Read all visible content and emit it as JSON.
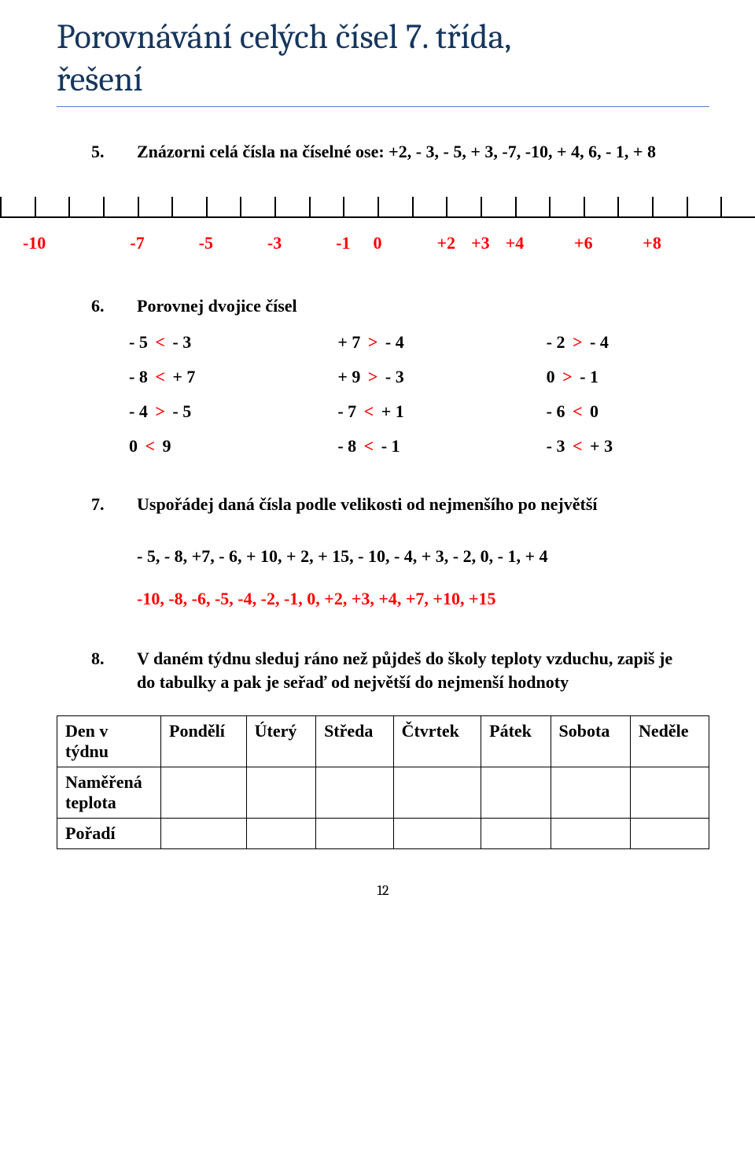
{
  "title_line1": "Porovnávání celých čísel 7. třída,",
  "title_line2": "řešení",
  "title_color": "#17365d",
  "rule_color": "#4f81bd",
  "answer_color": "#ff0000",
  "ex5": {
    "num": "5.",
    "text": "Znázorni celá čísla na číselné ose: +2, - 3, - 5, + 3, -7, -10, + 4,  6, - 1, + 8",
    "numberline": {
      "min": -11,
      "max": 11,
      "tick_step": 1,
      "tick_height": 25,
      "axis_width": 2,
      "labels": [
        {
          "x": -10,
          "text": "-10"
        },
        {
          "x": -7,
          "text": "-7"
        },
        {
          "x": -5,
          "text": "-5"
        },
        {
          "x": -3,
          "text": "-3"
        },
        {
          "x": -1,
          "text": "-1"
        },
        {
          "x": 0,
          "text": "0"
        },
        {
          "x": 2,
          "text": "+2"
        },
        {
          "x": 3,
          "text": "+3"
        },
        {
          "x": 4,
          "text": "+4"
        },
        {
          "x": 6,
          "text": "+6"
        },
        {
          "x": 8,
          "text": "+8"
        }
      ]
    }
  },
  "ex6": {
    "num": "6.",
    "text": "Porovnej dvojice čísel",
    "rows": [
      [
        {
          "l": "- 5",
          "op": "<",
          "r": "- 3"
        },
        {
          "l": "+ 7",
          "op": ">",
          "r": "- 4"
        },
        {
          "l": "- 2",
          "op": ">",
          "r": "- 4"
        }
      ],
      [
        {
          "l": "- 8",
          "op": "<",
          "r": "+ 7"
        },
        {
          "l": "+ 9",
          "op": ">",
          "r": "- 3"
        },
        {
          "l": "0",
          "op": ">",
          "r": "- 1"
        }
      ],
      [
        {
          "l": "- 4",
          "op": ">",
          "r": "- 5"
        },
        {
          "l": "- 7",
          "op": "<",
          "r": "+ 1"
        },
        {
          "l": "- 6",
          "op": "<",
          "r": "0"
        }
      ],
      [
        {
          "l": " 0",
          "op": "<",
          "r": " 9"
        },
        {
          "l": "- 8",
          "op": "<",
          "r": "- 1"
        },
        {
          "l": "- 3",
          "op": "<",
          "r": "+ 3"
        }
      ]
    ]
  },
  "ex7": {
    "num": "7.",
    "text": "Uspořádej daná čísla podle velikosti od nejmenšího po největší",
    "given": "- 5, - 8, +7, - 6, + 10, + 2, + 15, - 10, - 4, + 3, - 2, 0, - 1, + 4",
    "answer": "-10, -8, -6, -5, -4, -2, -1, 0, +2, +3, +4, +7, +10, +15"
  },
  "ex8": {
    "num": "8.",
    "text": "V daném týdnu sleduj ráno než půjdeš do školy teploty vzduchu, zapiš je do tabulky a pak je seřaď od největší do nejmenší hodnoty",
    "table": {
      "row_labels": [
        "Den v týdnu",
        "Naměřená teplota",
        "Pořadí"
      ],
      "columns": [
        "Pondělí",
        "Úterý",
        "Středa",
        "Čtvrtek",
        "Pátek",
        "Sobota",
        "Neděle"
      ]
    }
  },
  "page_number": "12",
  "fonts": {
    "title_family": "Cambria, Georgia, serif",
    "title_size_pt": 33,
    "body_family": "Times New Roman, Times, serif",
    "body_size_pt": 16.5,
    "body_weight": "bold"
  }
}
